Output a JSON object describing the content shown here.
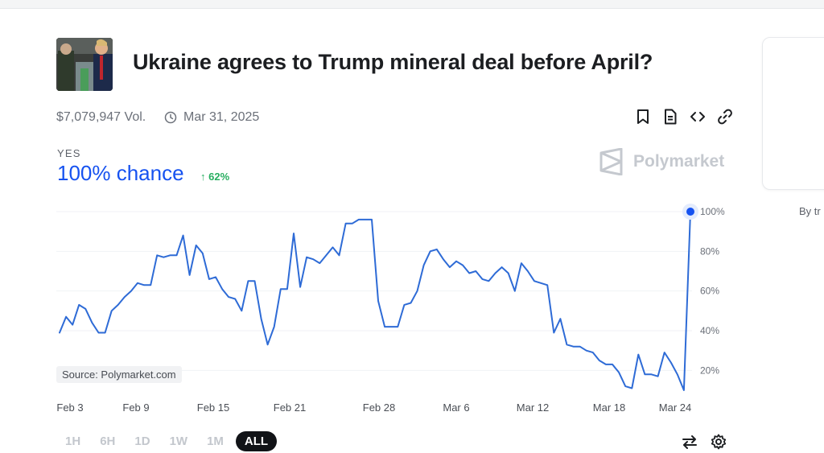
{
  "market": {
    "title": "Ukraine agrees to Trump mineral deal before April?",
    "volume": "$7,079,947 Vol.",
    "end_date": "Mar 31, 2025",
    "outcome_label": "YES",
    "chance_text": "100% chance",
    "change_text": "↑ 62%",
    "brand": "Polymarket",
    "source": "Source: Polymarket.com"
  },
  "side_panel": {
    "text": "By tr"
  },
  "ranges": [
    "1H",
    "6H",
    "1D",
    "1W",
    "1M",
    "ALL"
  ],
  "active_range": "ALL",
  "icons": {
    "actions": [
      "bookmark-icon",
      "document-icon",
      "embed-code-icon",
      "link-icon"
    ],
    "tools": [
      "swap-arrows-icon",
      "settings-gear-icon"
    ]
  },
  "colors": {
    "accent": "#1652f0",
    "line": "#2e6bd6",
    "positive": "#27ae60",
    "active_range_bg": "#111317"
  },
  "chart_data": {
    "type": "line",
    "series": [
      {
        "values": [
          39,
          47,
          43,
          53,
          51,
          44,
          39,
          39,
          50,
          53,
          57,
          60,
          64,
          63,
          63,
          78,
          77,
          78,
          78,
          88,
          68,
          83,
          79,
          66,
          67,
          61,
          57,
          56,
          50,
          65,
          65,
          46,
          33,
          42,
          61,
          61,
          89,
          62,
          77,
          76,
          74,
          78,
          82,
          78,
          94,
          94,
          96,
          96,
          96,
          55,
          42,
          42,
          42,
          53,
          54,
          60,
          73,
          80,
          81,
          76,
          72,
          75,
          73,
          69,
          70,
          66,
          65,
          69,
          72,
          69,
          60,
          74,
          70,
          65,
          64,
          63,
          39,
          46,
          33,
          32,
          32,
          30,
          29,
          25,
          23,
          23,
          19,
          12,
          11,
          28,
          18,
          18,
          17,
          29,
          24,
          18,
          10,
          100
        ]
      }
    ],
    "x_tick_labels": [
      "Feb 3",
      "Feb 9",
      "Feb 15",
      "Feb 21",
      "Feb 28",
      "Mar 6",
      "Mar 12",
      "Mar 18",
      "Mar 24"
    ],
    "y_tick_labels": [
      "20%",
      "40%",
      "60%",
      "80%",
      "100%"
    ],
    "y_ticks": [
      20,
      40,
      60,
      80,
      100
    ],
    "ylim": [
      10,
      100
    ],
    "grid": true,
    "end_marker": true
  }
}
